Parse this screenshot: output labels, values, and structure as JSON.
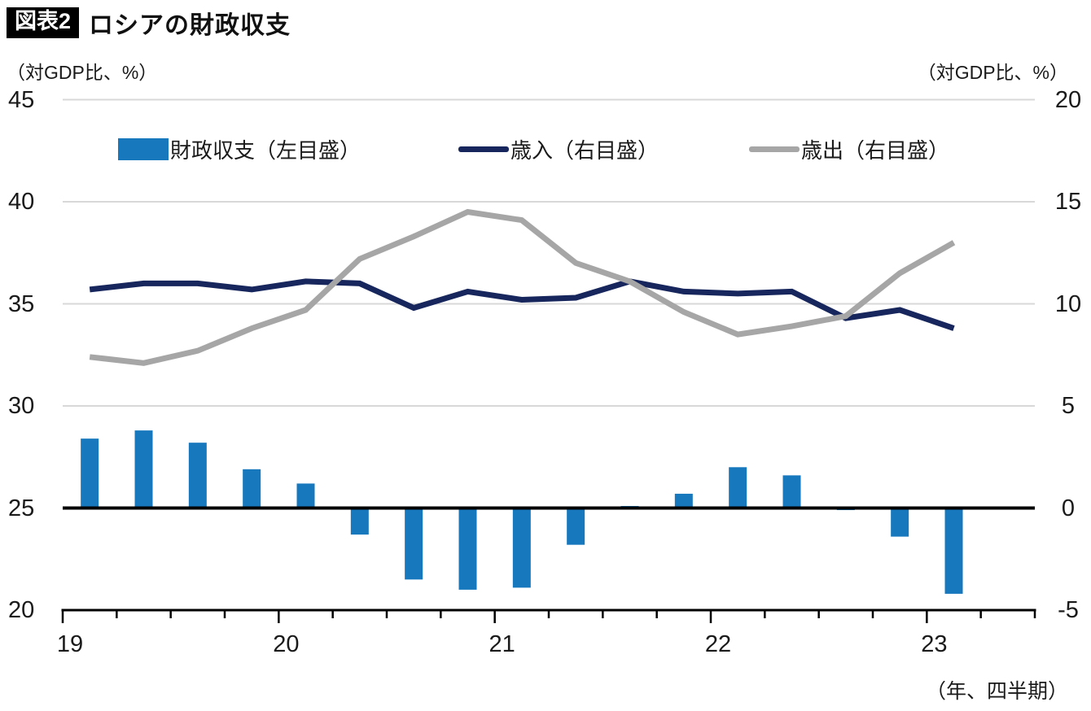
{
  "header": {
    "badge": "図表2",
    "title": "ロシアの財政収支"
  },
  "footer_label": "（年、四半期）",
  "chart_data": {
    "type": "combo",
    "title": "ロシアの財政収支",
    "subtitle": "",
    "x_unit_label": "（年、四半期）",
    "categories": [
      "19Q1",
      "19Q2",
      "19Q3",
      "19Q4",
      "20Q1",
      "20Q2",
      "20Q3",
      "20Q4",
      "21Q1",
      "21Q2",
      "21Q3",
      "21Q4",
      "22Q1",
      "22Q2",
      "22Q3",
      "22Q4",
      "23Q1"
    ],
    "x_year_labels": [
      "19",
      "20",
      "21",
      "22",
      "23"
    ],
    "left_axis": {
      "label": "（対GDP比、%）",
      "ticks": [
        45,
        40,
        35,
        30,
        25,
        20
      ],
      "range": [
        20,
        45
      ]
    },
    "right_axis": {
      "label": "（対GDP比、%）",
      "ticks": [
        20,
        15,
        10,
        5,
        0,
        -5
      ],
      "range": [
        -5,
        20
      ]
    },
    "baseline_note": "bar baseline sits at left-scale 25 = right-scale 0; left value = right value + 25",
    "grid": true,
    "legend_position": "top",
    "series": [
      {
        "name": "財政収支（左目盛）",
        "type": "bar",
        "axis": "left",
        "color": "#1878BE",
        "values": [
          3.4,
          3.8,
          3.2,
          1.9,
          1.2,
          -1.3,
          -3.5,
          -4.0,
          -3.9,
          -1.8,
          0.1,
          0.7,
          2.0,
          1.6,
          -0.1,
          -1.4,
          -4.2
        ]
      },
      {
        "name": "歳入（右目盛）",
        "type": "line",
        "axis": "right",
        "color": "#17265C",
        "values": [
          10.7,
          11.0,
          11.0,
          10.7,
          11.1,
          11.0,
          9.8,
          10.6,
          10.2,
          10.3,
          11.1,
          10.6,
          10.5,
          10.6,
          9.3,
          9.7,
          8.8
        ]
      },
      {
        "name": "歳出（右目盛）",
        "type": "line",
        "axis": "right",
        "color": "#A6A6A6",
        "values": [
          7.4,
          7.1,
          7.7,
          8.8,
          9.7,
          12.2,
          13.3,
          14.5,
          14.1,
          12.0,
          11.1,
          9.6,
          8.5,
          8.9,
          9.4,
          11.5,
          13.0
        ]
      }
    ],
    "colors": {
      "bar": "#1878BE",
      "revenue_line": "#17265C",
      "expenditure_line": "#A6A6A6",
      "gridline": "#D8D8D8",
      "zero_line": "#000000",
      "axis": "#000000"
    }
  }
}
